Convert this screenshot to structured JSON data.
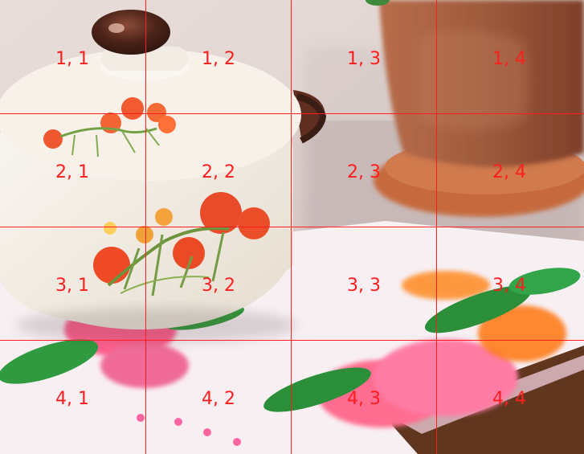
{
  "grid": {
    "color": "#ff1d1d",
    "rows": 4,
    "cols": 4,
    "labels": [
      [
        "1, 1",
        "1, 2",
        "1, 3",
        "1, 4"
      ],
      [
        "2, 1",
        "2, 2",
        "2, 3",
        "2, 4"
      ],
      [
        "3, 1",
        "3, 2",
        "3, 3",
        "3, 4"
      ],
      [
        "4, 1",
        "4, 2",
        "4, 3",
        "4, 4"
      ]
    ]
  },
  "scene": {
    "objects": [
      "flower-teapot",
      "clay-flower-pot",
      "floral-tray"
    ],
    "colors": {
      "teapot": "#f2ece3",
      "lid_knob": "#4a2218",
      "pot": "#a45a39",
      "saucer": "#c9693d",
      "tray_flowers": "#f0508a",
      "leaves": "#2f9a3f"
    }
  }
}
